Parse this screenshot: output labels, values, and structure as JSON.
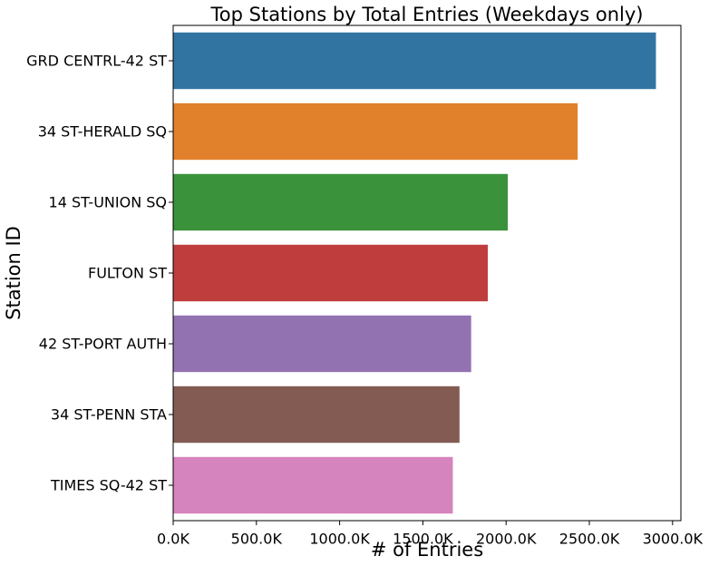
{
  "chart_data": {
    "type": "bar",
    "orientation": "horizontal",
    "title": "Top Stations by Total Entries (Weekdays only)",
    "xlabel": "# of Entries",
    "ylabel": "Station ID",
    "xlim": [
      0,
      3050000
    ],
    "x_ticks": [
      0,
      500000,
      1000000,
      1500000,
      2000000,
      2500000,
      3000000
    ],
    "x_tick_labels": [
      "0.0K",
      "500.0K",
      "1000.0K",
      "1500.0K",
      "2000.0K",
      "2500.0K",
      "3000.0K"
    ],
    "categories": [
      "GRD CENTRL-42 ST",
      "34 ST-HERALD SQ",
      "14 ST-UNION SQ",
      "FULTON ST",
      "42 ST-PORT AUTH",
      "34 ST-PENN STA",
      "TIMES SQ-42 ST"
    ],
    "values": [
      2900000,
      2430000,
      2010000,
      1890000,
      1790000,
      1720000,
      1680000
    ],
    "colors": [
      "#3274a1",
      "#e1812c",
      "#3a923a",
      "#c03d3e",
      "#9372b2",
      "#845b53",
      "#d684bd"
    ],
    "grid": false,
    "legend": "none"
  }
}
